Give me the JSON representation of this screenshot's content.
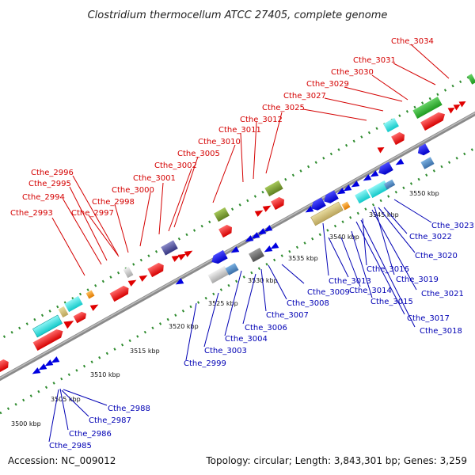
{
  "title": "Clostridium thermocellum ATCC 27405, complete genome",
  "footer": {
    "accession": "Accession: NC_009012",
    "topology": "Topology: circular; Length: 3,843,301 bp; Genes: 3,259"
  },
  "kbp_labels": [
    "3500 kbp",
    "3505 kbp",
    "3510 kbp",
    "3515 kbp",
    "3520 kbp",
    "3525 kbp",
    "3530 kbp",
    "3535 kbp",
    "3540 kbp",
    "3545 kbp",
    "3550 kbp"
  ],
  "top_genes": [
    "Cthe_2993",
    "Cthe_2994",
    "Cthe_2995",
    "Cthe_2996",
    "Cthe_2997",
    "Cthe_2998",
    "Cthe_3000",
    "Cthe_3001",
    "Cthe_3002",
    "Cthe_3005",
    "Cthe_3010",
    "Cthe_3011",
    "Cthe_3012",
    "Cthe_3025",
    "Cthe_3027",
    "Cthe_3029",
    "Cthe_3030",
    "Cthe_3031",
    "Cthe_3034"
  ],
  "bottom_genes": [
    "Cthe_2985",
    "Cthe_2986",
    "Cthe_2987",
    "Cthe_2988",
    "Cthe_2999",
    "Cthe_3003",
    "Cthe_3004",
    "Cthe_3006",
    "Cthe_3007",
    "Cthe_3008",
    "Cthe_3009",
    "Cthe_3013",
    "Cthe_3014",
    "Cthe_3015",
    "Cthe_3016",
    "Cthe_3017",
    "Cthe_3018",
    "Cthe_3019",
    "Cthe_3020",
    "Cthe_3021",
    "Cthe_3022",
    "Cthe_3023"
  ],
  "colors": {
    "forward_label": "#d40000",
    "reverse_label": "#0000b4",
    "backbone": "#8c8c8c",
    "tick": "#2e8b2e"
  }
}
